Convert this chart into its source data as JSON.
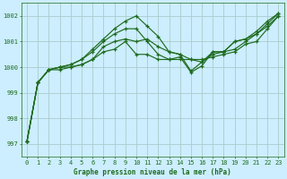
{
  "title": "Graphe pression niveau de la mer (hPa)",
  "bg_color": "#cceeff",
  "grid_color": "#aacccc",
  "line_color": "#1e6b1e",
  "xlim": [
    -0.5,
    23.5
  ],
  "ylim": [
    996.5,
    1002.5
  ],
  "yticks": [
    997,
    998,
    999,
    1000,
    1001,
    1002
  ],
  "xticks": [
    0,
    1,
    2,
    3,
    4,
    5,
    6,
    7,
    8,
    9,
    10,
    11,
    12,
    13,
    14,
    15,
    16,
    17,
    18,
    19,
    20,
    21,
    22,
    23
  ],
  "series": [
    [
      997.1,
      999.4,
      999.9,
      999.9,
      1000.0,
      1000.1,
      1000.3,
      1000.6,
      1000.7,
      1001.0,
      1000.5,
      1000.5,
      1000.3,
      1000.3,
      1000.3,
      1000.3,
      1000.3,
      1000.4,
      1000.5,
      1000.6,
      1000.9,
      1001.0,
      1001.5,
      1002.0
    ],
    [
      997.1,
      999.4,
      999.9,
      1000.0,
      1000.0,
      1000.1,
      1000.3,
      1000.8,
      1001.0,
      1001.1,
      1001.0,
      1001.1,
      1000.8,
      1000.6,
      1000.5,
      999.85,
      1000.2,
      1000.5,
      1000.6,
      1000.7,
      1001.0,
      1001.3,
      1001.6,
      1002.0
    ],
    [
      997.1,
      999.4,
      999.9,
      1000.0,
      1000.1,
      1000.3,
      1000.6,
      1001.0,
      1001.3,
      1001.5,
      1001.5,
      1001.0,
      1000.5,
      1000.3,
      1000.4,
      999.8,
      1000.05,
      1000.6,
      1000.6,
      1001.0,
      1001.1,
      1001.3,
      1001.7,
      1002.1
    ],
    [
      997.1,
      999.4,
      999.9,
      1000.0,
      1000.1,
      1000.3,
      1000.7,
      1001.1,
      1001.5,
      1001.8,
      1002.0,
      1001.6,
      1001.2,
      1000.6,
      1000.5,
      1000.3,
      1000.2,
      1000.6,
      1000.6,
      1001.0,
      1001.1,
      1001.4,
      1001.8,
      1002.1
    ]
  ]
}
